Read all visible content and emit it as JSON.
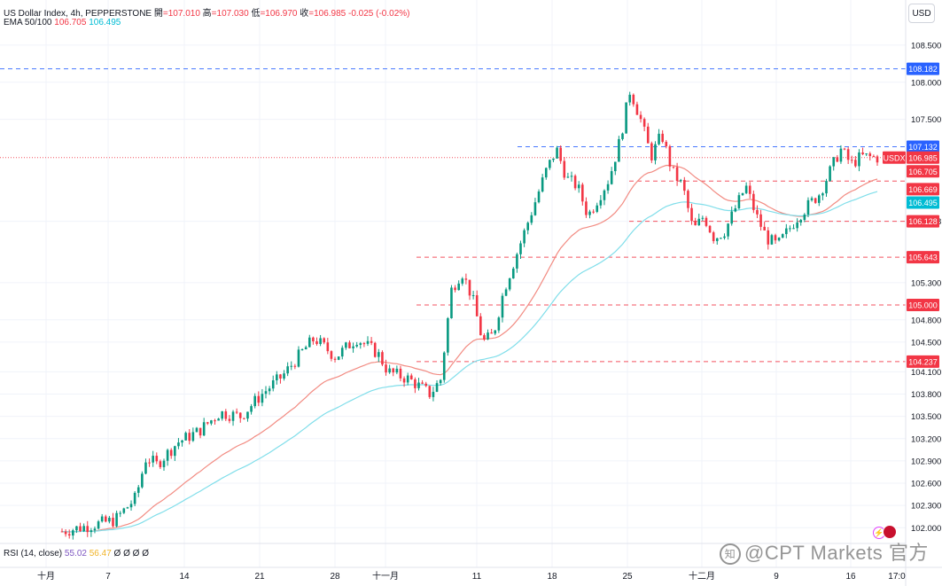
{
  "legend": {
    "symbol": "US Dollar Index, 4h, PEPPERSTONE",
    "open_label": "開",
    "open": "=107.010",
    "high_label": "高",
    "high": "=107.030",
    "low_label": "低",
    "low": "=106.970",
    "close_label": "收",
    "close": "=106.985",
    "change": "-0.025 (-0.02%)",
    "ema_label": "EMA 50/100",
    "ema50": "106.705",
    "ema100": "106.495"
  },
  "rsi": {
    "label": "RSI (14, close)",
    "v1": "55.02",
    "v2": "56.47",
    "zeros": "Ø Ø Ø Ø"
  },
  "currency": "USD",
  "watermark": "@CPT Markets 官方",
  "colors": {
    "up": "#089981",
    "down": "#f23645",
    "ema50": "#f28b82",
    "ema100": "#80deea",
    "blue_line": "#2962ff",
    "red_line": "#f23645"
  },
  "chart_data": {
    "type": "candlestick",
    "title": "US Dollar Index, 4h, PEPPERSTONE",
    "y_ticks": [
      "108.500",
      "108.000",
      "107.500",
      "106.128",
      "105.300",
      "104.800",
      "104.500",
      "104.100",
      "103.800",
      "103.500",
      "103.200",
      "102.900",
      "102.600",
      "102.300",
      "102.000"
    ],
    "ylim": [
      101.8,
      108.75
    ],
    "x_ticks": [
      "十月",
      "7",
      "14",
      "21",
      "28",
      "十一月",
      "11",
      "18",
      "25",
      "十二月",
      "9",
      "16",
      "17:0"
    ],
    "price_labels": [
      {
        "text": "108.182",
        "kind": "blue"
      },
      {
        "text": "107.132",
        "kind": "blue"
      },
      {
        "text": "USDX",
        "kind": "symbol"
      },
      {
        "text": "106.985",
        "kind": "red"
      },
      {
        "text": "106.705",
        "kind": "red"
      },
      {
        "text": "106.669",
        "kind": "red"
      },
      {
        "text": "106.495",
        "kind": "cyan"
      },
      {
        "text": "106.128",
        "kind": "red"
      },
      {
        "text": "105.643",
        "kind": "red"
      },
      {
        "text": "105.000",
        "kind": "red"
      },
      {
        "text": "104.237",
        "kind": "red"
      }
    ],
    "levels": [
      {
        "value": 108.182,
        "style": "blue",
        "from": "start"
      },
      {
        "value": 107.132,
        "style": "blue",
        "from": "18"
      },
      {
        "value": 106.985,
        "style": "red-dotted",
        "from": "start"
      },
      {
        "value": 106.669,
        "style": "red",
        "from": "25"
      },
      {
        "value": 106.128,
        "style": "red",
        "from": "25"
      },
      {
        "value": 105.643,
        "style": "red",
        "from": "十一月"
      },
      {
        "value": 105.0,
        "style": "red",
        "from": "十一月"
      },
      {
        "value": 104.237,
        "style": "red",
        "from": "十一月"
      }
    ],
    "close_path": [
      [
        0,
        101.95
      ],
      [
        10,
        102.1
      ],
      [
        14,
        102.4
      ],
      [
        16,
        102.95
      ],
      [
        18,
        102.85
      ],
      [
        22,
        103.15
      ],
      [
        26,
        103.3
      ],
      [
        30,
        103.55
      ],
      [
        34,
        103.5
      ],
      [
        38,
        103.8
      ],
      [
        42,
        104.05
      ],
      [
        46,
        104.4
      ],
      [
        48,
        104.55
      ],
      [
        52,
        104.3
      ],
      [
        56,
        104.55
      ],
      [
        60,
        104.35
      ],
      [
        62,
        104.1
      ],
      [
        66,
        104.0
      ],
      [
        70,
        103.8
      ],
      [
        72,
        104.0
      ],
      [
        74,
        105.2
      ],
      [
        76,
        105.45
      ],
      [
        78,
        105.1
      ],
      [
        80,
        104.5
      ],
      [
        82,
        104.6
      ],
      [
        84,
        105.2
      ],
      [
        88,
        106.0
      ],
      [
        92,
        106.8
      ],
      [
        94,
        107.1
      ],
      [
        96,
        106.7
      ],
      [
        98,
        106.6
      ],
      [
        100,
        106.2
      ],
      [
        104,
        106.7
      ],
      [
        106,
        107.2
      ],
      [
        108,
        107.9
      ],
      [
        110,
        107.5
      ],
      [
        112,
        107.0
      ],
      [
        114,
        107.3
      ],
      [
        116,
        106.8
      ],
      [
        118,
        106.6
      ],
      [
        120,
        106.0
      ],
      [
        122,
        106.2
      ],
      [
        124,
        105.9
      ],
      [
        126,
        106.0
      ],
      [
        128,
        106.3
      ],
      [
        130,
        106.6
      ],
      [
        132,
        106.2
      ],
      [
        134,
        105.9
      ],
      [
        136,
        105.8
      ],
      [
        138,
        106.0
      ],
      [
        140,
        106.2
      ],
      [
        144,
        106.5
      ],
      [
        146,
        106.8
      ],
      [
        148,
        107.1
      ],
      [
        150,
        106.9
      ],
      [
        152,
        107.0
      ],
      [
        155,
        106.985
      ]
    ],
    "series": [
      {
        "name": "EMA 50",
        "last": 106.705
      },
      {
        "name": "EMA 100",
        "last": 106.495
      }
    ]
  }
}
